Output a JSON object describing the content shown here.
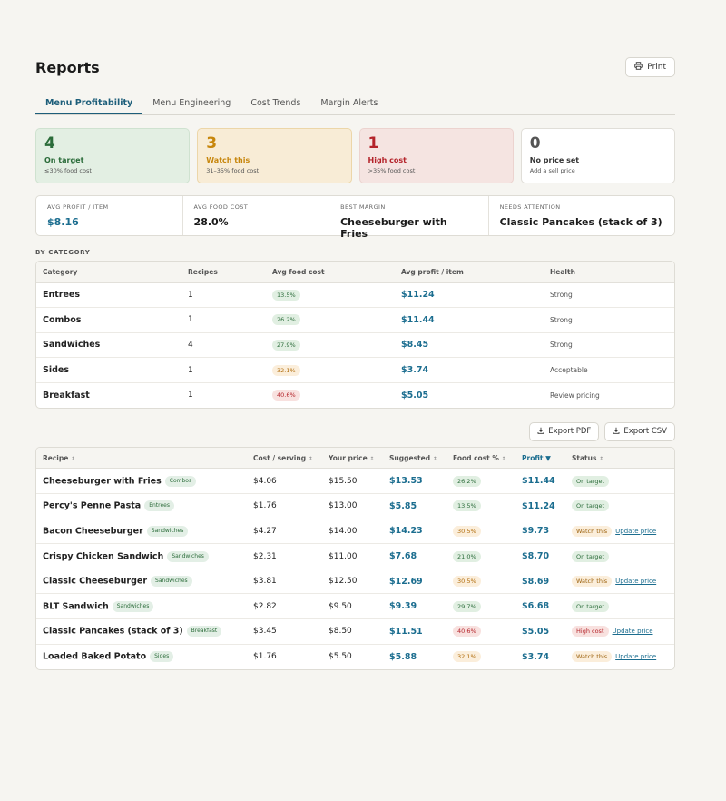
{
  "page": {
    "title": "Reports",
    "print_label": "Print"
  },
  "tabs": [
    {
      "label": "Menu Profitability",
      "active": true
    },
    {
      "label": "Menu Engineering",
      "active": false
    },
    {
      "label": "Cost Trends",
      "active": false
    },
    {
      "label": "Margin Alerts",
      "active": false
    }
  ],
  "status_cards": [
    {
      "count": "4",
      "label": "On target",
      "sub": "≤30% food cost",
      "tone": "green"
    },
    {
      "count": "3",
      "label": "Watch this",
      "sub": "31–35% food cost",
      "tone": "amber"
    },
    {
      "count": "1",
      "label": "High cost",
      "sub": ">35% food cost",
      "tone": "red"
    },
    {
      "count": "0",
      "label": "No price set",
      "sub": "Add a sell price",
      "tone": "gray"
    }
  ],
  "metrics": [
    {
      "label": "AVG PROFIT / ITEM",
      "value": "$8.16",
      "accent": true
    },
    {
      "label": "AVG FOOD COST",
      "value": "28.0%",
      "accent": false
    },
    {
      "label": "BEST MARGIN",
      "value": "Cheeseburger with Fries",
      "accent": false
    },
    {
      "label": "NEEDS ATTENTION",
      "value": "Classic Pancakes (stack of 3)",
      "accent": false
    }
  ],
  "category_section": {
    "title": "BY CATEGORY",
    "headers": [
      "Category",
      "Recipes",
      "Avg food cost",
      "Avg profit / item",
      "Health"
    ],
    "rows": [
      {
        "category": "Entrees",
        "recipes": "1",
        "food_cost": "13.5%",
        "tone": "green",
        "profit": "$11.24",
        "health": "Strong"
      },
      {
        "category": "Combos",
        "recipes": "1",
        "food_cost": "26.2%",
        "tone": "green",
        "profit": "$11.44",
        "health": "Strong"
      },
      {
        "category": "Sandwiches",
        "recipes": "4",
        "food_cost": "27.9%",
        "tone": "green",
        "profit": "$8.45",
        "health": "Strong"
      },
      {
        "category": "Sides",
        "recipes": "1",
        "food_cost": "32.1%",
        "tone": "amber",
        "profit": "$3.74",
        "health": "Acceptable"
      },
      {
        "category": "Breakfast",
        "recipes": "1",
        "food_cost": "40.6%",
        "tone": "red",
        "profit": "$5.05",
        "health": "Review pricing"
      }
    ]
  },
  "export": {
    "pdf_label": "Export PDF",
    "csv_label": "Export CSV"
  },
  "recipe_table": {
    "headers": [
      "Recipe",
      "Cost / serving",
      "Your price",
      "Suggested",
      "Food cost %",
      "Profit",
      "Status"
    ],
    "sort_icons": {
      "inactive": "↕",
      "active": "▼"
    },
    "update_label": "Update price",
    "rows": [
      {
        "name": "Cheeseburger with Fries",
        "category": "Combos",
        "cost": "$4.06",
        "price": "$15.50",
        "suggested": "$13.53",
        "food_cost": "26.2%",
        "fc_tone": "green",
        "profit": "$11.44",
        "status": "On target",
        "st_tone": "on",
        "update": false
      },
      {
        "name": "Percy's Penne Pasta",
        "category": "Entrees",
        "cost": "$1.76",
        "price": "$13.00",
        "suggested": "$5.85",
        "food_cost": "13.5%",
        "fc_tone": "green",
        "profit": "$11.24",
        "status": "On target",
        "st_tone": "on",
        "update": false
      },
      {
        "name": "Bacon Cheeseburger",
        "category": "Sandwiches",
        "cost": "$4.27",
        "price": "$14.00",
        "suggested": "$14.23",
        "food_cost": "30.5%",
        "fc_tone": "amber",
        "profit": "$9.73",
        "status": "Watch this",
        "st_tone": "watch",
        "update": true
      },
      {
        "name": "Crispy Chicken Sandwich",
        "category": "Sandwiches",
        "cost": "$2.31",
        "price": "$11.00",
        "suggested": "$7.68",
        "food_cost": "21.0%",
        "fc_tone": "green",
        "profit": "$8.70",
        "status": "On target",
        "st_tone": "on",
        "update": false
      },
      {
        "name": "Classic Cheeseburger",
        "category": "Sandwiches",
        "cost": "$3.81",
        "price": "$12.50",
        "suggested": "$12.69",
        "food_cost": "30.5%",
        "fc_tone": "amber",
        "profit": "$8.69",
        "status": "Watch this",
        "st_tone": "watch",
        "update": true
      },
      {
        "name": "BLT Sandwich",
        "category": "Sandwiches",
        "cost": "$2.82",
        "price": "$9.50",
        "suggested": "$9.39",
        "food_cost": "29.7%",
        "fc_tone": "green",
        "profit": "$6.68",
        "status": "On target",
        "st_tone": "on",
        "update": false
      },
      {
        "name": "Classic Pancakes (stack of 3)",
        "category": "Breakfast",
        "cost": "$3.45",
        "price": "$8.50",
        "suggested": "$11.51",
        "food_cost": "40.6%",
        "fc_tone": "red",
        "profit": "$5.05",
        "status": "High cost",
        "st_tone": "high",
        "update": true
      },
      {
        "name": "Loaded Baked Potato",
        "category": "Sides",
        "cost": "$1.76",
        "price": "$5.50",
        "suggested": "$5.88",
        "food_cost": "32.1%",
        "fc_tone": "amber",
        "profit": "$3.74",
        "status": "Watch this",
        "st_tone": "watch",
        "update": true
      }
    ]
  }
}
